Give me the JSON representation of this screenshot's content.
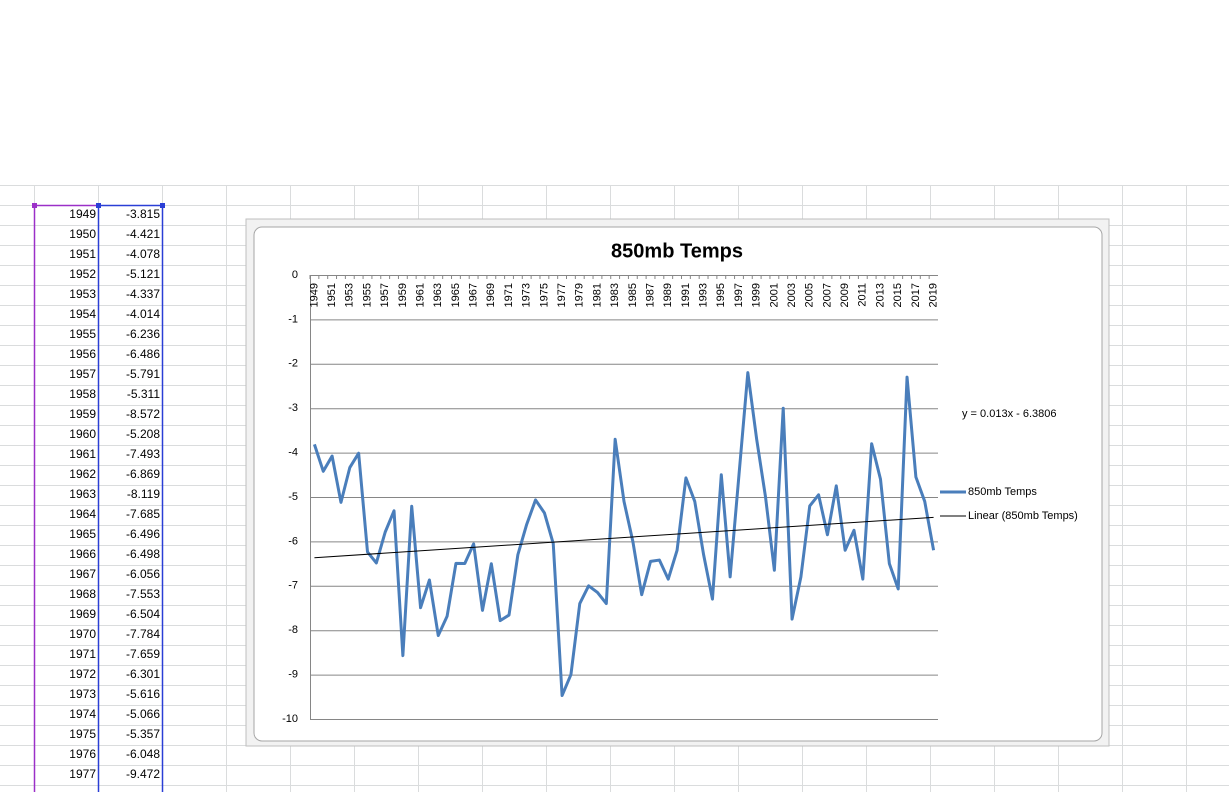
{
  "sheet": {
    "rows": [
      [
        1949,
        -3.815
      ],
      [
        1950,
        -4.421
      ],
      [
        1951,
        -4.078
      ],
      [
        1952,
        -5.121
      ],
      [
        1953,
        -4.337
      ],
      [
        1954,
        -4.014
      ],
      [
        1955,
        -6.236
      ],
      [
        1956,
        -6.486
      ],
      [
        1957,
        -5.791
      ],
      [
        1958,
        -5.311
      ],
      [
        1959,
        -8.572
      ],
      [
        1960,
        -5.208
      ],
      [
        1961,
        -7.493
      ],
      [
        1962,
        -6.869
      ],
      [
        1963,
        -8.119
      ],
      [
        1964,
        -7.685
      ],
      [
        1965,
        -6.496
      ],
      [
        1966,
        -6.498
      ],
      [
        1967,
        -6.056
      ],
      [
        1968,
        -7.553
      ],
      [
        1969,
        -6.504
      ],
      [
        1970,
        -7.784
      ],
      [
        1971,
        -7.659
      ],
      [
        1972,
        -6.301
      ],
      [
        1973,
        -5.616
      ],
      [
        1974,
        -5.066
      ],
      [
        1975,
        -5.357
      ],
      [
        1976,
        -6.048
      ],
      [
        1977,
        -9.472
      ]
    ]
  },
  "chart_data": {
    "type": "line",
    "title": "850mb Temps",
    "categories": [
      1949,
      null,
      1951,
      null,
      1953,
      null,
      1955,
      null,
      1957,
      null,
      1959,
      null,
      1961,
      null,
      1963,
      null,
      1965,
      null,
      1967,
      null,
      1969,
      null,
      1971,
      null,
      1973,
      null,
      1975,
      null,
      1977,
      null,
      1979,
      null,
      1981,
      null,
      1983,
      null,
      1985,
      null,
      1987,
      null,
      1989,
      null,
      1991,
      null,
      1993,
      null,
      1995,
      null,
      1997,
      null,
      1999,
      null,
      2001,
      null,
      2003,
      null,
      2005,
      null,
      2007,
      null,
      2009,
      null,
      2011,
      null,
      2013,
      null,
      2015,
      null,
      2017,
      null,
      2019
    ],
    "series": [
      {
        "name": "850mb Temps",
        "color": "#4a7ebb",
        "values": [
          -3.815,
          -4.421,
          -4.078,
          -5.121,
          -4.337,
          -4.014,
          -6.236,
          -6.486,
          -5.791,
          -5.311,
          -8.572,
          -5.208,
          -7.493,
          -6.869,
          -8.119,
          -7.685,
          -6.496,
          -6.498,
          -6.056,
          -7.553,
          -6.504,
          -7.784,
          -7.659,
          -6.301,
          -5.616,
          -5.066,
          -5.357,
          -6.048,
          -9.472,
          -9.0,
          -7.4,
          -7.0,
          -7.15,
          -7.4,
          -3.7,
          -5.1,
          -6.0,
          -7.2,
          -6.45,
          -6.42,
          -6.85,
          -6.2,
          -4.57,
          -5.1,
          -6.3,
          -7.3,
          -4.5,
          -6.8,
          -4.5,
          -2.2,
          -3.7,
          -5.0,
          -6.65,
          -3.0,
          -7.75,
          -6.8,
          -5.2,
          -4.95,
          -5.85,
          -4.75,
          -6.2,
          -5.75,
          -6.85,
          -3.8,
          -4.6,
          -6.5,
          -7.07,
          -2.3,
          -4.55,
          -5.1,
          -6.2
        ]
      }
    ],
    "trendline": {
      "name": "Linear (850mb Temps)",
      "equation": "y = 0.013x - 6.3806",
      "slope": 0.013,
      "intercept": -6.3806,
      "color": "#000000"
    },
    "ylim": [
      -10,
      0
    ],
    "yticks": [
      0,
      -1,
      -2,
      -3,
      -4,
      -5,
      -6,
      -7,
      -8,
      -9,
      -10
    ],
    "grid": true
  }
}
